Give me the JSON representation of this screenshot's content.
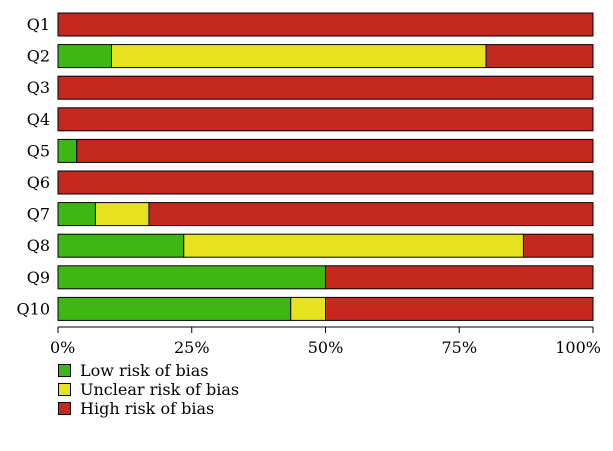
{
  "chart_data": {
    "type": "bar",
    "orientation": "horizontal",
    "stacked": true,
    "normalized_percent": true,
    "categories": [
      "Q1",
      "Q2",
      "Q3",
      "Q4",
      "Q5",
      "Q6",
      "Q7",
      "Q8",
      "Q9",
      "Q10"
    ],
    "series": [
      {
        "name": "Low risk of bias",
        "color": "#3fb713",
        "values": [
          0,
          10,
          0,
          0,
          3.5,
          0,
          7,
          23.5,
          50,
          43.5
        ]
      },
      {
        "name": "Unclear risk of bias",
        "color": "#e6e31e",
        "values": [
          0,
          70,
          0,
          0,
          0,
          0,
          10,
          63.5,
          0,
          6.5
        ]
      },
      {
        "name": "High risk of bias",
        "color": "#c4281f",
        "values": [
          100,
          20,
          100,
          100,
          96.5,
          100,
          83,
          13,
          50,
          50
        ]
      }
    ],
    "xlim": [
      0,
      100
    ],
    "xticks": [
      "0%",
      "25%",
      "50%",
      "75%",
      "100%"
    ],
    "grid": false,
    "legend_position": "bottom-left"
  }
}
